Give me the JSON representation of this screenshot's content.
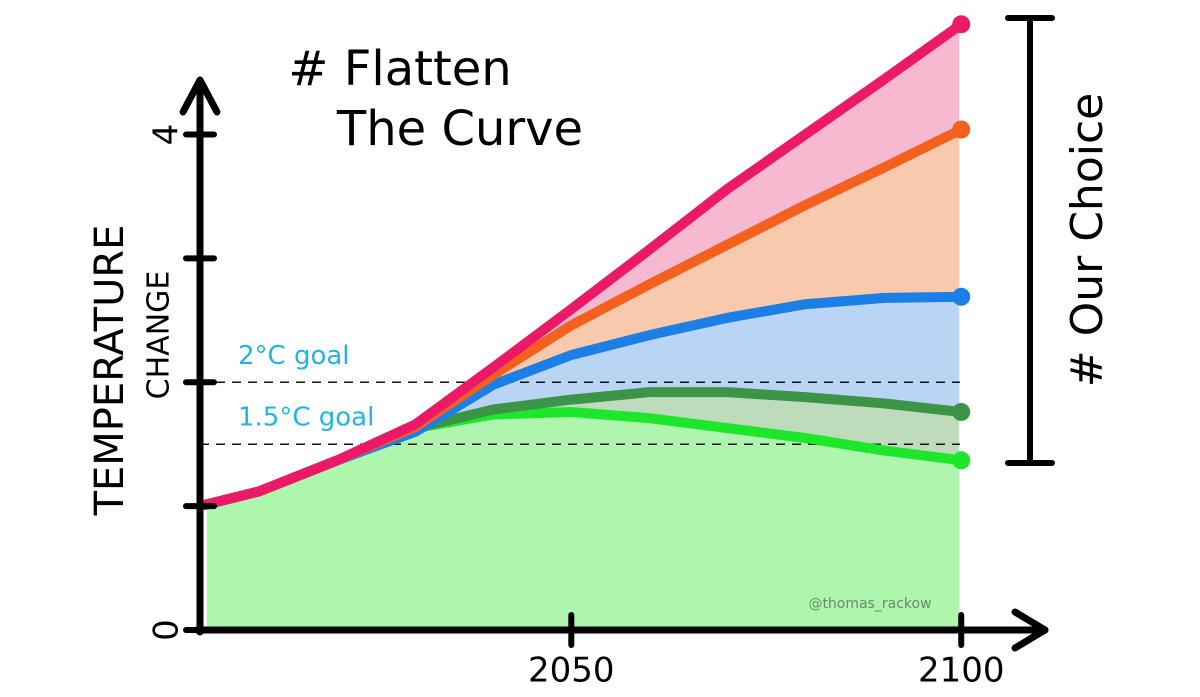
{
  "chart_data": {
    "type": "line",
    "title": [
      "# Flatten",
      "The Curve"
    ],
    "ylabel": [
      "TEMPERATURE",
      "CHANGE"
    ],
    "side_label": "# Our Choice",
    "credit": "@thomas_rackow",
    "x": [
      2003,
      2010,
      2020,
      2030,
      2040,
      2050,
      2060,
      2070,
      2080,
      2090,
      2100
    ],
    "xlim": [
      2002,
      2111
    ],
    "xticks": [
      2050,
      2100
    ],
    "ylim": [
      0,
      4.44
    ],
    "yticks": [
      0,
      4
    ],
    "yminorticks": [
      1,
      2,
      3
    ],
    "hlines": [
      {
        "value": 2,
        "label": "2°C goal"
      },
      {
        "value": 1.5,
        "label": "1.5°C goal"
      }
    ],
    "series": [
      {
        "color": "#ec1a66",
        "fill": "#f7b9d0",
        "values": [
          1.01,
          1.12,
          1.37,
          1.66,
          2.12,
          2.59,
          3.07,
          3.56,
          4.0,
          4.44,
          4.89
        ]
      },
      {
        "color": "#f4611f",
        "fill": "#f9c9ae",
        "values": [
          1.01,
          1.12,
          1.37,
          1.64,
          2.06,
          2.46,
          2.79,
          3.11,
          3.43,
          3.73,
          4.04
        ]
      },
      {
        "color": "#1c7fe6",
        "fill": "#b9d5f3",
        "values": [
          1.01,
          1.12,
          1.37,
          1.6,
          1.98,
          2.22,
          2.38,
          2.52,
          2.63,
          2.68,
          2.69
        ]
      },
      {
        "color": "#3c9447",
        "fill": "#bedcbc",
        "values": [
          1.01,
          1.12,
          1.37,
          1.63,
          1.78,
          1.86,
          1.92,
          1.92,
          1.88,
          1.83,
          1.76
        ]
      },
      {
        "color": "#1ee62a",
        "fill": "#aef5ae",
        "values": [
          1.01,
          1.12,
          1.37,
          1.63,
          1.74,
          1.76,
          1.71,
          1.63,
          1.55,
          1.45,
          1.37
        ]
      }
    ]
  }
}
